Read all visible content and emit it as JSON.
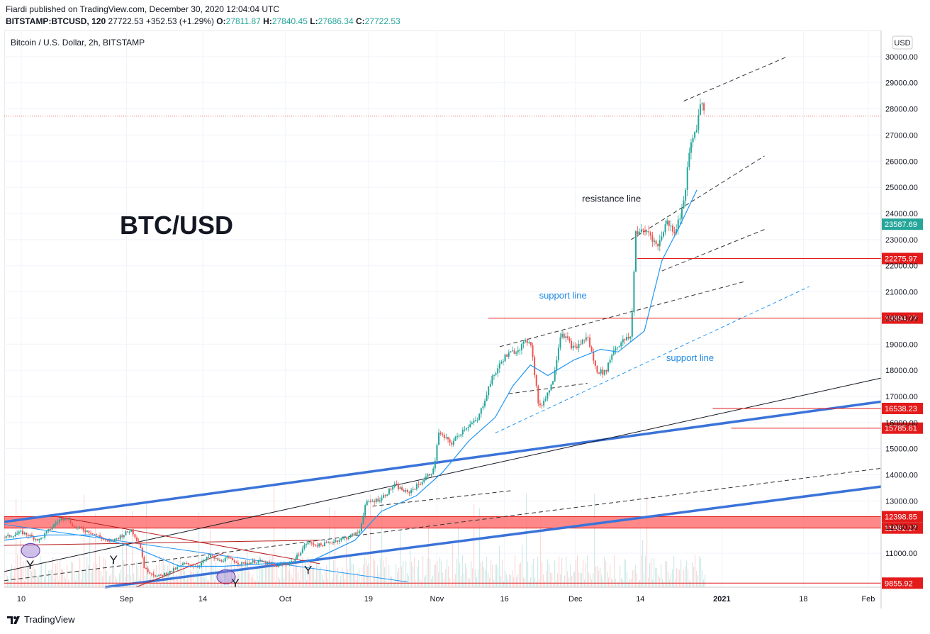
{
  "header": {
    "published_line": "Fiardi published on TradingView.com, December 30, 2020 12:04:04 UTC",
    "symbol": "BITSTAMP:BTCUSD, 120",
    "last_price": "27722.53",
    "change": "+352.53 (+1.29%)",
    "open_label": "O:",
    "open": "27811.87",
    "high_label": "H:",
    "high": "27840.45",
    "low_label": "L:",
    "low": "27686.34",
    "close_label": "C:",
    "close": "27722.53"
  },
  "colors": {
    "bull": "#26a69a",
    "bear": "#ef5350",
    "red_line": "#e31b1b",
    "blue_thick": "#3b73d9",
    "ma_blue": "#2196f3",
    "label_blue": "#1e88e5",
    "zone_fill": "#ff6b6b",
    "price_badge": "#26a69a"
  },
  "chart_data": {
    "type": "candlestick",
    "title": "Bitcoin / U.S. Dollar, 2h, BITSTAMP",
    "watermark": "BTC/USD",
    "currency": "USD",
    "ylim": [
      9700,
      31000
    ],
    "y_ticks": [
      11000,
      12000,
      13000,
      14000,
      15000,
      16000,
      17000,
      18000,
      19000,
      20000,
      21000,
      22000,
      23000,
      24000,
      25000,
      26000,
      27000,
      28000,
      29000,
      30000
    ],
    "x_ticks": [
      {
        "label": "10",
        "x": 0.0
      },
      {
        "label": "Sep",
        "x": 0.12
      },
      {
        "label": "14",
        "x": 0.207
      },
      {
        "label": "Oct",
        "x": 0.301
      },
      {
        "label": "19",
        "x": 0.396
      },
      {
        "label": "Nov",
        "x": 0.474
      },
      {
        "label": "16",
        "x": 0.551
      },
      {
        "label": "Dec",
        "x": 0.632
      },
      {
        "label": "14",
        "x": 0.706
      },
      {
        "label": "2021",
        "x": 0.799
      },
      {
        "label": "18",
        "x": 0.892
      },
      {
        "label": "Feb",
        "x": 0.966
      }
    ],
    "current_price": 27722.53,
    "price_path": [
      [
        0.0,
        11600
      ],
      [
        0.02,
        11800
      ],
      [
        0.04,
        11500
      ],
      [
        0.06,
        12200
      ],
      [
        0.07,
        12400
      ],
      [
        0.08,
        12000
      ],
      [
        0.1,
        11800
      ],
      [
        0.12,
        11400
      ],
      [
        0.135,
        11700
      ],
      [
        0.145,
        11900
      ],
      [
        0.155,
        11300
      ],
      [
        0.16,
        10400
      ],
      [
        0.175,
        10100
      ],
      [
        0.19,
        10300
      ],
      [
        0.205,
        10600
      ],
      [
        0.22,
        10500
      ],
      [
        0.235,
        10900
      ],
      [
        0.245,
        10700
      ],
      [
        0.255,
        10800
      ],
      [
        0.27,
        10600
      ],
      [
        0.29,
        10700
      ],
      [
        0.31,
        10500
      ],
      [
        0.33,
        10700
      ],
      [
        0.345,
        11400
      ],
      [
        0.36,
        11300
      ],
      [
        0.375,
        11450
      ],
      [
        0.39,
        11600
      ],
      [
        0.405,
        11800
      ],
      [
        0.412,
        12900
      ],
      [
        0.43,
        13100
      ],
      [
        0.445,
        13600
      ],
      [
        0.46,
        13300
      ],
      [
        0.475,
        13700
      ],
      [
        0.49,
        14200
      ],
      [
        0.495,
        15600
      ],
      [
        0.51,
        15200
      ],
      [
        0.525,
        15800
      ],
      [
        0.54,
        16100
      ],
      [
        0.555,
        17600
      ],
      [
        0.57,
        18500
      ],
      [
        0.585,
        18800
      ],
      [
        0.6,
        19200
      ],
      [
        0.61,
        16500
      ],
      [
        0.625,
        17500
      ],
      [
        0.635,
        19500
      ],
      [
        0.65,
        18800
      ],
      [
        0.665,
        19300
      ],
      [
        0.675,
        18000
      ],
      [
        0.685,
        17900
      ],
      [
        0.695,
        18800
      ],
      [
        0.705,
        19100
      ],
      [
        0.715,
        19300
      ],
      [
        0.72,
        23300
      ],
      [
        0.735,
        23300
      ],
      [
        0.745,
        22700
      ],
      [
        0.755,
        23700
      ],
      [
        0.765,
        23300
      ],
      [
        0.775,
        24400
      ],
      [
        0.782,
        26500
      ],
      [
        0.79,
        27400
      ],
      [
        0.795,
        28400
      ],
      [
        0.8,
        27722
      ]
    ],
    "volume_note": "volume bars at bottom",
    "horizontal_levels": [
      {
        "price": 22275.97,
        "label": "22275.97",
        "x_start": 0.722
      },
      {
        "price": 19994.77,
        "label": "19994.77",
        "x_start": 0.552
      },
      {
        "price": 16538.23,
        "label": "16538.23",
        "x_start": 0.808
      },
      {
        "price": 15785.61,
        "label": "15785.61",
        "x_start": 0.829
      },
      {
        "price": 9855.92,
        "label": "9855.92",
        "x_start": 0.0
      }
    ],
    "zone": {
      "top": 12398.85,
      "bottom": 11961.17,
      "label_top": "12398.85",
      "label_bottom": "11961.17"
    },
    "badge_price": {
      "price": 23587.69,
      "label": "23587.69"
    },
    "annotations": [
      {
        "text": "resistance line",
        "x": 0.659,
        "price": 24450,
        "color": "#131722"
      },
      {
        "text": "support line",
        "x": 0.61,
        "price": 20750,
        "color": "#1e88e5"
      },
      {
        "text": "support line",
        "x": 0.755,
        "price": 18350,
        "color": "#1e88e5"
      },
      {
        "text": "Y",
        "x": 0.025,
        "price": 10400,
        "color": "#131722"
      },
      {
        "text": "Y",
        "x": 0.12,
        "price": 10600,
        "color": "#131722"
      },
      {
        "text": "Y",
        "x": 0.259,
        "price": 9700,
        "color": "#131722"
      },
      {
        "text": "Y",
        "x": 0.342,
        "price": 10200,
        "color": "#131722"
      }
    ],
    "lines": [
      {
        "kind": "thick-blue",
        "p1": [
          0.0,
          12200
        ],
        "p2": [
          1.0,
          16800
        ]
      },
      {
        "kind": "thick-blue",
        "p1": [
          0.115,
          9700
        ],
        "p2": [
          1.0,
          13550
        ]
      },
      {
        "kind": "black",
        "p1": [
          0.0,
          10300
        ],
        "p2": [
          1.0,
          17700
        ]
      },
      {
        "kind": "dashed",
        "p1": [
          0.0,
          9950
        ],
        "p2": [
          1.0,
          14250
        ]
      },
      {
        "kind": "dashed",
        "p1": [
          0.565,
          18900
        ],
        "p2": [
          0.845,
          21400
        ]
      },
      {
        "kind": "dashed",
        "p1": [
          0.715,
          23000
        ],
        "p2": [
          0.867,
          26200
        ]
      },
      {
        "kind": "dashed",
        "p1": [
          0.75,
          21800
        ],
        "p2": [
          0.868,
          23400
        ]
      },
      {
        "kind": "dashed",
        "p1": [
          0.775,
          28300
        ],
        "p2": [
          0.893,
          30000
        ]
      },
      {
        "kind": "dashed",
        "p1": [
          0.575,
          17100
        ],
        "p2": [
          0.665,
          17500
        ]
      },
      {
        "kind": "dashed",
        "p1": [
          0.42,
          12800
        ],
        "p2": [
          0.58,
          13400
        ]
      },
      {
        "kind": "dashed-blue",
        "p1": [
          0.56,
          15600
        ],
        "p2": [
          0.918,
          21200
        ]
      },
      {
        "kind": "blue-thin",
        "p1": [
          0.0,
          12100
        ],
        "p2": [
          0.46,
          9900
        ]
      },
      {
        "kind": "red-thin",
        "p1": [
          0.0,
          11300
        ],
        "p2": [
          0.36,
          11500
        ]
      },
      {
        "kind": "red-thin",
        "p1": [
          0.06,
          12400
        ],
        "p2": [
          0.36,
          10600
        ]
      },
      {
        "kind": "red-thin",
        "p1": [
          0.15,
          9700
        ],
        "p2": [
          0.25,
          11000
        ]
      }
    ],
    "ma_path": [
      [
        0.0,
        11500
      ],
      [
        0.05,
        11700
      ],
      [
        0.1,
        11700
      ],
      [
        0.15,
        11200
      ],
      [
        0.2,
        10500
      ],
      [
        0.25,
        10500
      ],
      [
        0.3,
        10600
      ],
      [
        0.35,
        10700
      ],
      [
        0.4,
        11500
      ],
      [
        0.43,
        12600
      ],
      [
        0.47,
        13200
      ],
      [
        0.5,
        14100
      ],
      [
        0.53,
        15300
      ],
      [
        0.56,
        16200
      ],
      [
        0.58,
        17400
      ],
      [
        0.6,
        18200
      ],
      [
        0.62,
        17800
      ],
      [
        0.65,
        18400
      ],
      [
        0.68,
        18800
      ],
      [
        0.7,
        18700
      ],
      [
        0.73,
        19500
      ],
      [
        0.75,
        22200
      ],
      [
        0.77,
        23500
      ],
      [
        0.79,
        24900
      ]
    ],
    "ellipses": [
      {
        "x": 0.03,
        "price": 11100
      },
      {
        "x": 0.253,
        "price": 10100
      }
    ]
  },
  "footer": {
    "brand": "TradingView"
  }
}
